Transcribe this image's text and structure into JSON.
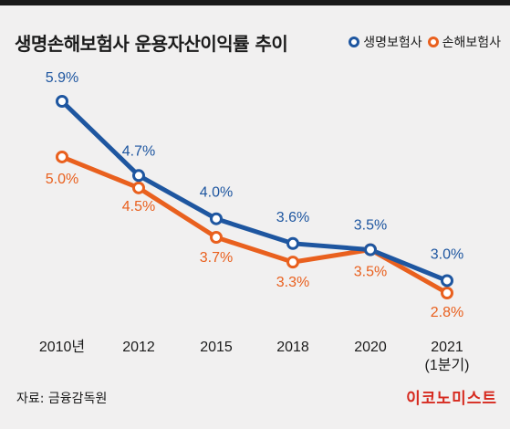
{
  "title": "생명손해보험사 운용자산이익률 추이",
  "source": "자료: 금융감독원",
  "logo": "이코노미스트",
  "colors": {
    "life": "#1e56a0",
    "nonlife": "#e9601e",
    "background": "#f1f0f0"
  },
  "chart_data": {
    "type": "line",
    "title": "생명손해보험사 운용자산이익률 추이",
    "categories": [
      "2010년",
      "2012",
      "2015",
      "2018",
      "2020",
      "2021\n(1분기)"
    ],
    "category_lines": [
      [
        "2010년"
      ],
      [
        "2012"
      ],
      [
        "2015"
      ],
      [
        "2018"
      ],
      [
        "2020"
      ],
      [
        "2021",
        "(1분기)"
      ]
    ],
    "series": [
      {
        "name": "생명보험사",
        "values": [
          5.9,
          4.7,
          4.0,
          3.6,
          3.5,
          3.0
        ],
        "labels": [
          "5.9%",
          "4.7%",
          "4.0%",
          "3.6%",
          "3.5%",
          "3.0%"
        ],
        "color": "#1e56a0"
      },
      {
        "name": "손해보험사",
        "values": [
          5.0,
          4.5,
          3.7,
          3.3,
          3.5,
          2.8
        ],
        "labels": [
          "5.0%",
          "4.5%",
          "3.7%",
          "3.3%",
          "3.5%",
          "2.8%"
        ],
        "color": "#e9601e"
      }
    ],
    "ylim": [
      2.8,
      5.9
    ],
    "xlabel": "",
    "ylabel": "",
    "grid": false,
    "legend": "top-right"
  }
}
